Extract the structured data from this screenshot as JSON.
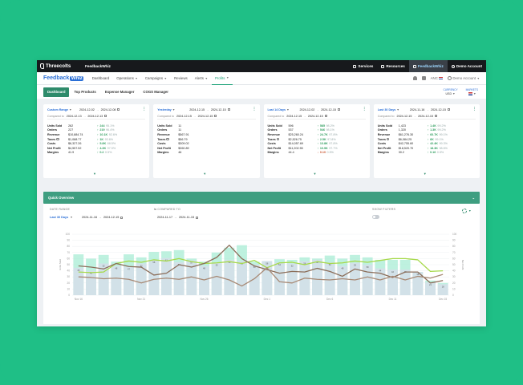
{
  "topbar": {
    "brand": "Threecolts",
    "account": "FeedbackWhiz",
    "links": [
      {
        "label": "Services",
        "icon": "grid-icon",
        "active": false
      },
      {
        "label": "Resources",
        "icon": "book-icon",
        "active": false
      },
      {
        "label": "FeedbackWhiz",
        "icon": "app-icon",
        "active": true
      },
      {
        "label": "Demo Account",
        "icon": "user-icon",
        "active": false
      }
    ]
  },
  "nav": {
    "brand_main": "Feedback",
    "brand_badge": "Whiz",
    "items": [
      {
        "label": "Dashboard",
        "caret": false,
        "active": false
      },
      {
        "label": "Operations",
        "caret": true,
        "active": false
      },
      {
        "label": "Campaigns",
        "caret": true,
        "active": false
      },
      {
        "label": "Reviews",
        "caret": false,
        "active": false
      },
      {
        "label": "Alerts",
        "caret": true,
        "active": false
      },
      {
        "label": "Profits",
        "caret": true,
        "active": true
      }
    ],
    "store": "ANC",
    "user": "Demo Account"
  },
  "subnav": {
    "tabs": [
      {
        "label": "Dashboard",
        "active": true
      },
      {
        "label": "Top Products",
        "active": false
      },
      {
        "label": "Expense Manager",
        "active": false
      },
      {
        "label": "COGS Manager",
        "active": false
      }
    ],
    "currency_label": "CURRENCY",
    "currency_value": "USD",
    "markets_label": "MARKETS"
  },
  "cards": [
    {
      "range": "Custom Range",
      "from": "2024-12-02",
      "to": "2024-12-08",
      "compared_label": "Compared to",
      "cmp_from": "2024-12-13",
      "cmp_to": "2024-12-13",
      "metrics": [
        {
          "name": "Units Sold",
          "value": "262",
          "delta": "244",
          "pct": "95.1%",
          "dir": "up"
        },
        {
          "name": "Orders",
          "value": "227",
          "delta": "219",
          "pct": "96.4%",
          "dir": "up"
        },
        {
          "name": "Revenue",
          "value": "$10,884.74",
          "delta": "10.1K",
          "pct": "92.6%",
          "dir": "up"
        },
        {
          "name": "Taxes",
          "value": "$1,088.77",
          "delta": "1K",
          "pct": "93.6%",
          "dir": "up"
        },
        {
          "name": "Costs",
          "value": "$6,327.26",
          "delta": "5.8K",
          "pct": "88.5%",
          "dir": "up"
        },
        {
          "name": "Net Profit",
          "value": "$4,557.52",
          "delta": "4.3K",
          "pct": "97.9%",
          "dir": "up"
        },
        {
          "name": "Margins",
          "value": "41.9",
          "delta": "0.2",
          "pct": "0.5%",
          "dir": "up"
        }
      ]
    },
    {
      "range": "Yesterday",
      "from": "2024-12-15",
      "to": "2024-12-15",
      "compared_label": "Compared to",
      "cmp_from": "2024-12-15",
      "cmp_to": "2024-12-15",
      "metrics": [
        {
          "name": "Units Sold",
          "value": "11",
          "delta": "",
          "pct": "",
          "dir": "up"
        },
        {
          "name": "Orders",
          "value": "11",
          "delta": "",
          "pct": "",
          "dir": "up"
        },
        {
          "name": "Revenue",
          "value": "$567.91",
          "delta": "",
          "pct": "",
          "dir": "up"
        },
        {
          "name": "Taxes",
          "value": "$56.79",
          "delta": "",
          "pct": "",
          "dir": "up"
        },
        {
          "name": "Costs",
          "value": "$309.02",
          "delta": "",
          "pct": "",
          "dir": "up"
        },
        {
          "name": "Net Profit",
          "value": "$260.89",
          "delta": "",
          "pct": "",
          "dir": "up"
        },
        {
          "name": "Margins",
          "value": "46",
          "delta": "",
          "pct": "",
          "dir": "up"
        }
      ]
    },
    {
      "range": "Last 14 Days",
      "from": "2024-12-02",
      "to": "2024-12-15",
      "compared_label": "Compared to",
      "cmp_from": "2024-12-15",
      "cmp_to": "2024-12-15",
      "metrics": [
        {
          "name": "Units Sold",
          "value": "596",
          "delta": "585",
          "pct": "98.2%",
          "dir": "up"
        },
        {
          "name": "Orders",
          "value": "537",
          "delta": "546",
          "pct": "98.1%",
          "dir": "up"
        },
        {
          "name": "Revenue",
          "value": "$25,260.24",
          "delta": "24.7K",
          "pct": "97.8%",
          "dir": "up"
        },
        {
          "name": "Taxes",
          "value": "$2,526.75",
          "delta": "2.5K",
          "pct": "97.8%",
          "dir": "up"
        },
        {
          "name": "Costs",
          "value": "$14,057.69",
          "delta": "13.8K",
          "pct": "97.8%",
          "dir": "up"
        },
        {
          "name": "Net Profit",
          "value": "$11,202.55",
          "delta": "10.9K",
          "pct": "97.7%",
          "dir": "up"
        },
        {
          "name": "Margins",
          "value": "44.4",
          "delta": "0.10",
          "pct": "0.5%",
          "dir": "down"
        }
      ]
    },
    {
      "range": "Last 30 Days",
      "from": "2024-11-16",
      "to": "2024-12-15",
      "compared_label": "Compared to",
      "cmp_from": "2024-12-15",
      "cmp_to": "2024-12-15",
      "metrics": [
        {
          "name": "Units Sold",
          "value": "1,423",
          "delta": "1.4K",
          "pct": "99.2%",
          "dir": "up"
        },
        {
          "name": "Orders",
          "value": "1,320",
          "delta": "1.3K",
          "pct": "99.2%",
          "dir": "up"
        },
        {
          "name": "Revenue",
          "value": "$61,276.30",
          "delta": "60.7K",
          "pct": "99.1%",
          "dir": "up"
        },
        {
          "name": "Taxes",
          "value": "$6,084.25",
          "delta": "6K",
          "pct": "99.1%",
          "dir": "up"
        },
        {
          "name": "Costs",
          "value": "$42,755.60",
          "delta": "42.4K",
          "pct": "99.3%",
          "dir": "up"
        },
        {
          "name": "Net Profit",
          "value": "$18,520.70",
          "delta": "18.3K",
          "pct": "98.6%",
          "dir": "up"
        },
        {
          "name": "Margins",
          "value": "30.2",
          "delta": "0.16",
          "pct": "0.5%",
          "dir": "up"
        }
      ]
    }
  ],
  "overview": {
    "title": "Quick Overview",
    "date_range_label": "DATE RANGE",
    "date_range_value": "Last 30 Days",
    "from": "2024-11-16",
    "to": "2024-12-15",
    "compared_label": "COMPARED TO",
    "cmp_from": "2024-11-17",
    "cmp_to": "2024-11-15",
    "show_filters_label": "SHOW FILTERS"
  },
  "chart_data": {
    "type": "bar",
    "categories": [
      "Nov 16",
      "Nov 17",
      "Nov 18",
      "Nov 19",
      "Nov 20",
      "Nov 21",
      "Nov 22",
      "Nov 23",
      "Nov 24",
      "Nov 25",
      "Nov 26",
      "Nov 27",
      "Nov 28",
      "Nov 29",
      "Nov 30",
      "Dec 1",
      "Dec 2",
      "Dec 3",
      "Dec 4",
      "Dec 5",
      "Dec 6",
      "Dec 7",
      "Dec 8",
      "Dec 9",
      "Dec 10",
      "Dec 11",
      "Dec 12",
      "Dec 13",
      "Dec 14",
      "Dec 15"
    ],
    "x_tick_labels": [
      "Nov 16",
      "Nov 21",
      "Nov 26",
      "Dec 1",
      "Dec 6",
      "Dec 11",
      "Dec 15"
    ],
    "xlabel": "",
    "ylabel": "Units Sold",
    "y2label": "Net Profit",
    "ylim": [
      0,
      100
    ],
    "yticks": [
      "0",
      "10",
      "20",
      "30",
      "40",
      "50",
      "60",
      "70",
      "80",
      "90",
      "100"
    ],
    "y2ticks": [
      "0",
      "10",
      "20",
      "30",
      "40",
      "50",
      "60",
      "70",
      "80",
      "90",
      "100"
    ],
    "grid": true,
    "series": [
      {
        "name": "",
        "kind": "bar",
        "color": "#d3dfe8",
        "values": [
          45,
          40,
          52,
          48,
          47,
          52,
          58,
          61,
          54,
          57,
          48,
          53,
          58,
          56,
          50,
          56,
          54,
          52,
          56,
          58,
          54,
          48,
          53,
          50,
          44,
          42,
          42,
          38,
          21,
          18
        ]
      },
      {
        "name": "",
        "kind": "bar",
        "color": "#a8ecd4",
        "values": [
          67,
          60,
          66,
          55,
          67,
          62,
          71,
          72,
          74,
          60,
          55,
          70,
          78,
          82,
          55,
          55,
          59,
          58,
          62,
          60,
          65,
          60,
          66,
          62,
          58,
          58,
          58,
          38,
          24,
          20
        ]
      },
      {
        "name": "",
        "kind": "line",
        "color": "#a6d94a",
        "values": [
          38,
          37,
          38,
          52,
          56,
          54,
          58,
          56,
          60,
          55,
          52,
          53,
          55,
          52,
          57,
          45,
          53,
          54,
          50,
          55,
          52,
          53,
          56,
          54,
          57,
          60,
          60,
          58,
          39,
          40
        ]
      },
      {
        "name": "",
        "kind": "line",
        "color": "#8c6e5a",
        "values": [
          48,
          46,
          43,
          52,
          47,
          46,
          33,
          36,
          50,
          46,
          52,
          62,
          82,
          60,
          48,
          42,
          36,
          39,
          38,
          44,
          39,
          31,
          43,
          38,
          36,
          29,
          38,
          38,
          20,
          24
        ]
      },
      {
        "name": "",
        "kind": "line",
        "color": "#a88a76",
        "values": [
          30,
          29,
          27,
          28,
          26,
          20,
          26,
          28,
          26,
          30,
          25,
          31,
          25,
          15,
          27,
          45,
          22,
          20,
          28,
          26,
          25,
          27,
          25,
          30,
          25,
          31,
          25,
          31,
          28,
          34
        ]
      }
    ]
  },
  "colors": {
    "brand": "#1fbf86",
    "accent": "#2e8b6b",
    "link": "#2a6fd6",
    "up": "#2e9d5e",
    "down": "#c9542e"
  }
}
